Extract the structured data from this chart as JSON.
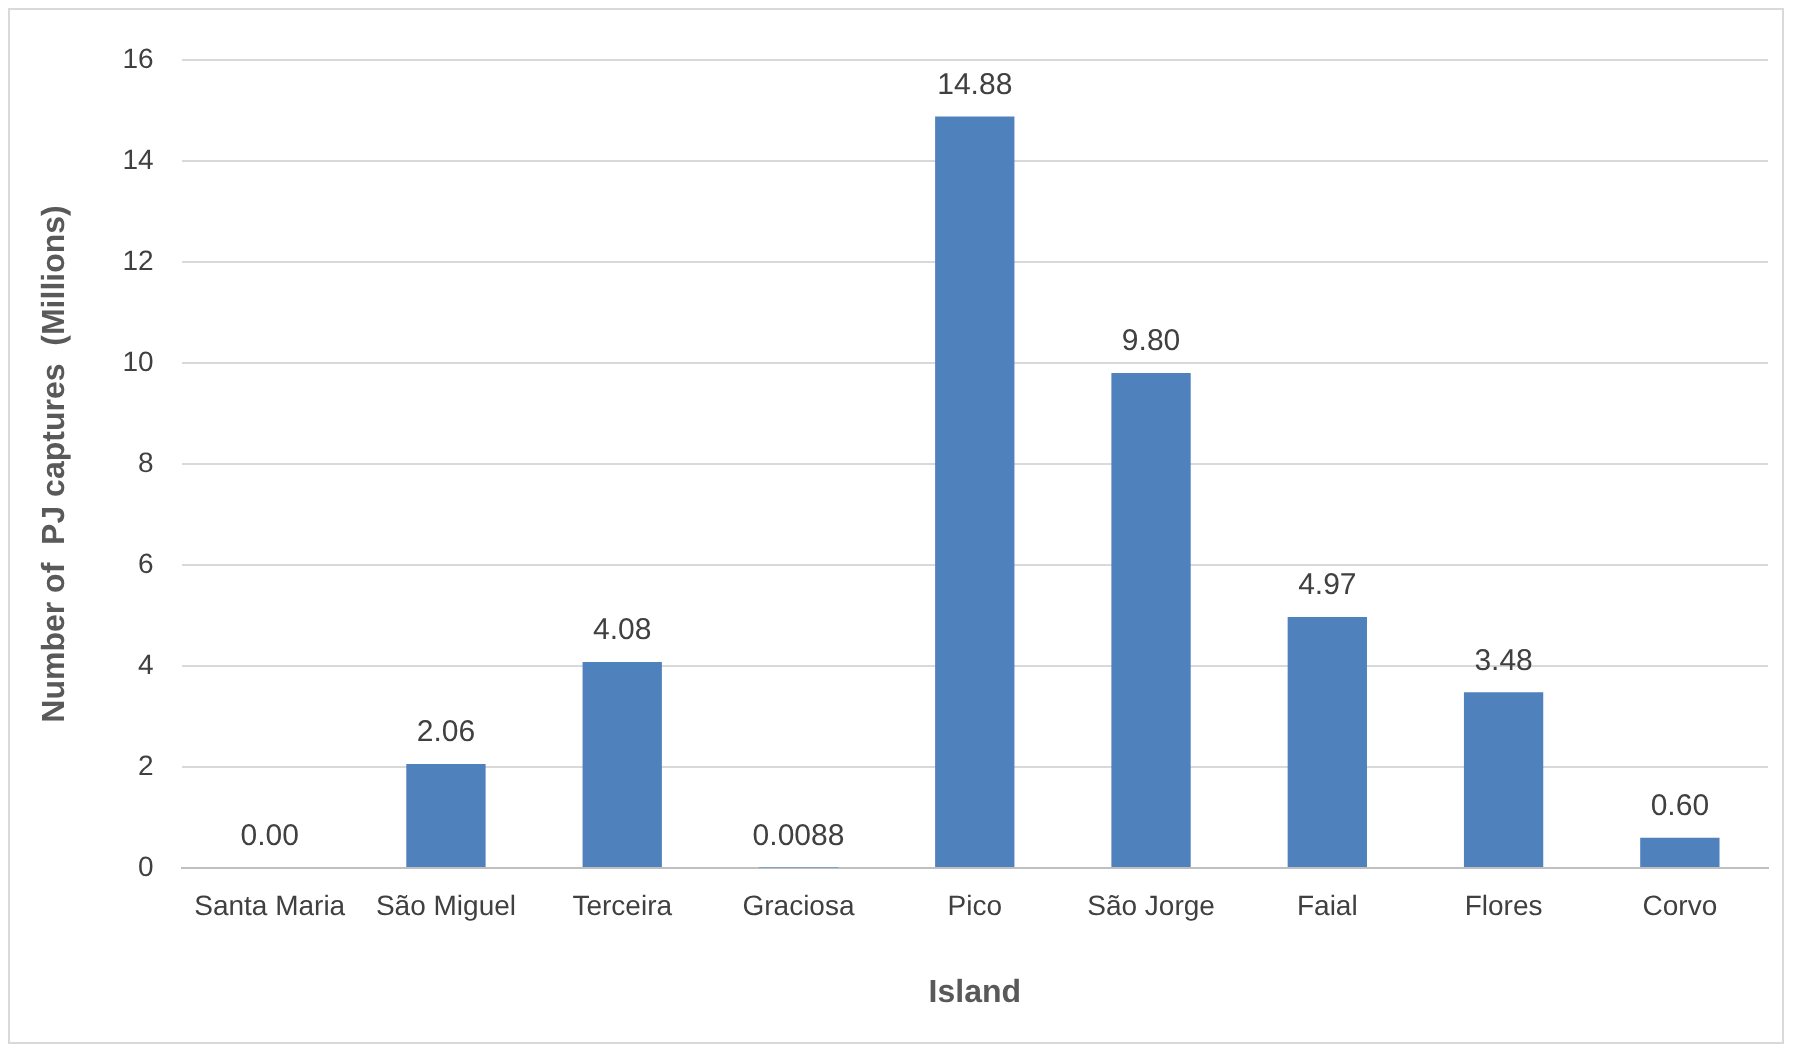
{
  "chart_data": {
    "type": "bar",
    "xlabel": "Island",
    "ylabel": "Number of  PJ captures  (Millions)",
    "categories": [
      "Santa Maria",
      "São Miguel",
      "Terceira",
      "Graciosa",
      "Pico",
      "São Jorge",
      "Faial",
      "Flores",
      "Corvo"
    ],
    "values": [
      0,
      2.06,
      4.08,
      0.0088,
      14.88,
      9.8,
      4.97,
      3.48,
      0.6
    ],
    "value_labels": [
      "0.00",
      "2.06",
      "4.08",
      "0.0088",
      "14.88",
      "9.80",
      "4.97",
      "3.48",
      "0.60"
    ],
    "color": "#4f81bd",
    "ylim": [
      0,
      16
    ],
    "yticks": [
      0,
      2,
      4,
      6,
      8,
      10,
      12,
      14,
      16
    ],
    "grid": "y"
  }
}
